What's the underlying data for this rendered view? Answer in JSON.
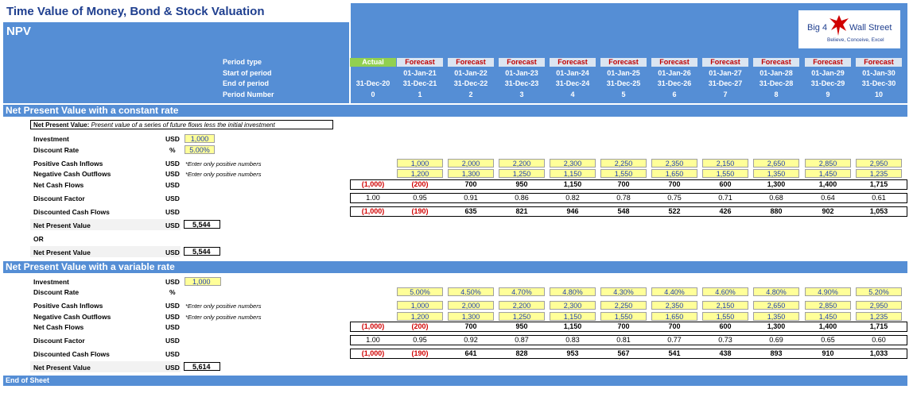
{
  "title": "Time Value of Money, Bond & Stock Valuation",
  "subtitle": "NPV",
  "logo": {
    "text_left": "Big 4",
    "text_right": "Wall Street",
    "tagline": "Believe, Conceive, Excel"
  },
  "header_labels": {
    "period_type": "Period type",
    "start": "Start of period",
    "end": "End of period",
    "number": "Period Number"
  },
  "periods": [
    {
      "type": "Actual",
      "start": "",
      "end": "31-Dec-20",
      "num": "0"
    },
    {
      "type": "Forecast",
      "start": "01-Jan-21",
      "end": "31-Dec-21",
      "num": "1"
    },
    {
      "type": "Forecast",
      "start": "01-Jan-22",
      "end": "31-Dec-22",
      "num": "2"
    },
    {
      "type": "Forecast",
      "start": "01-Jan-23",
      "end": "31-Dec-23",
      "num": "3"
    },
    {
      "type": "Forecast",
      "start": "01-Jan-24",
      "end": "31-Dec-24",
      "num": "4"
    },
    {
      "type": "Forecast",
      "start": "01-Jan-25",
      "end": "31-Dec-25",
      "num": "5"
    },
    {
      "type": "Forecast",
      "start": "01-Jan-26",
      "end": "31-Dec-26",
      "num": "6"
    },
    {
      "type": "Forecast",
      "start": "01-Jan-27",
      "end": "31-Dec-27",
      "num": "7"
    },
    {
      "type": "Forecast",
      "start": "01-Jan-28",
      "end": "31-Dec-28",
      "num": "8"
    },
    {
      "type": "Forecast",
      "start": "01-Jan-29",
      "end": "31-Dec-29",
      "num": "9"
    },
    {
      "type": "Forecast",
      "start": "01-Jan-30",
      "end": "31-Dec-30",
      "num": "10"
    }
  ],
  "section1": {
    "title": "Net Present Value with a constant rate",
    "definition_bold": "Net Present Value:",
    "definition_italic": "Present value of a series of future flows less the initial investment",
    "investment": {
      "label": "Investment",
      "unit": "USD",
      "value": "1,000"
    },
    "rate": {
      "label": "Discount Rate",
      "unit": "%",
      "value": "5.00%"
    },
    "inflows": {
      "label": "Positive Cash Inflows",
      "unit": "USD",
      "note": "*Enter only positive numbers",
      "values": [
        "1,000",
        "2,000",
        "2,200",
        "2,300",
        "2,250",
        "2,350",
        "2,150",
        "2,650",
        "2,850",
        "2,950"
      ]
    },
    "outflows": {
      "label": "Negative Cash Outflows",
      "unit": "USD",
      "note": "*Enter only positive numbers",
      "values": [
        "1,200",
        "1,300",
        "1,250",
        "1,150",
        "1,550",
        "1,650",
        "1,550",
        "1,350",
        "1,450",
        "1,235"
      ]
    },
    "net": {
      "label": "Net Cash Flows",
      "unit": "USD",
      "values": [
        "(1,000)",
        "(200)",
        "700",
        "950",
        "1,150",
        "700",
        "700",
        "600",
        "1,300",
        "1,400",
        "1,715"
      ]
    },
    "factor": {
      "label": "Discount Factor",
      "unit": "USD",
      "values": [
        "1.00",
        "0.95",
        "0.91",
        "0.86",
        "0.82",
        "0.78",
        "0.75",
        "0.71",
        "0.68",
        "0.64",
        "0.61"
      ]
    },
    "discounted": {
      "label": "Discounted Cash Flows",
      "unit": "USD",
      "values": [
        "(1,000)",
        "(190)",
        "635",
        "821",
        "946",
        "548",
        "522",
        "426",
        "880",
        "902",
        "1,053"
      ]
    },
    "npv1": {
      "label": "Net Present Value",
      "unit": "USD",
      "value": "5,544"
    },
    "or": "OR",
    "npv2": {
      "label": "Net Present Value",
      "unit": "USD",
      "value": "5,544"
    }
  },
  "section2": {
    "title": "Net Present Value with a variable rate",
    "investment": {
      "label": "Investment",
      "unit": "USD",
      "value": "1,000"
    },
    "rate": {
      "label": "Discount Rate",
      "unit": "%",
      "values": [
        "5.00%",
        "4.50%",
        "4.70%",
        "4.80%",
        "4.30%",
        "4.40%",
        "4.60%",
        "4.80%",
        "4.90%",
        "5.20%"
      ]
    },
    "inflows": {
      "label": "Positive Cash Inflows",
      "unit": "USD",
      "note": "*Enter only positive numbers",
      "values": [
        "1,000",
        "2,000",
        "2,200",
        "2,300",
        "2,250",
        "2,350",
        "2,150",
        "2,650",
        "2,850",
        "2,950"
      ]
    },
    "outflows": {
      "label": "Negative Cash Outflows",
      "unit": "USD",
      "note": "*Enter only positive numbers",
      "values": [
        "1,200",
        "1,300",
        "1,250",
        "1,150",
        "1,550",
        "1,650",
        "1,550",
        "1,350",
        "1,450",
        "1,235"
      ]
    },
    "net": {
      "label": "Net Cash Flows",
      "unit": "USD",
      "values": [
        "(1,000)",
        "(200)",
        "700",
        "950",
        "1,150",
        "700",
        "700",
        "600",
        "1,300",
        "1,400",
        "1,715"
      ]
    },
    "factor": {
      "label": "Discount Factor",
      "unit": "USD",
      "values": [
        "1.00",
        "0.95",
        "0.92",
        "0.87",
        "0.83",
        "0.81",
        "0.77",
        "0.73",
        "0.69",
        "0.65",
        "0.60"
      ]
    },
    "discounted": {
      "label": "Discounted Cash Flows",
      "unit": "USD",
      "values": [
        "(1,000)",
        "(190)",
        "641",
        "828",
        "953",
        "567",
        "541",
        "438",
        "893",
        "910",
        "1,033"
      ]
    },
    "npv": {
      "label": "Net Present Value",
      "unit": "USD",
      "value": "5,614"
    }
  },
  "footer": "End of Sheet",
  "colors": {
    "band": "#558ed5",
    "actual": "#92d050",
    "forecast_bg": "#dbe5f1",
    "forecast_text": "#c00000",
    "input_bg": "#ffff99",
    "negative": "#d00000"
  }
}
